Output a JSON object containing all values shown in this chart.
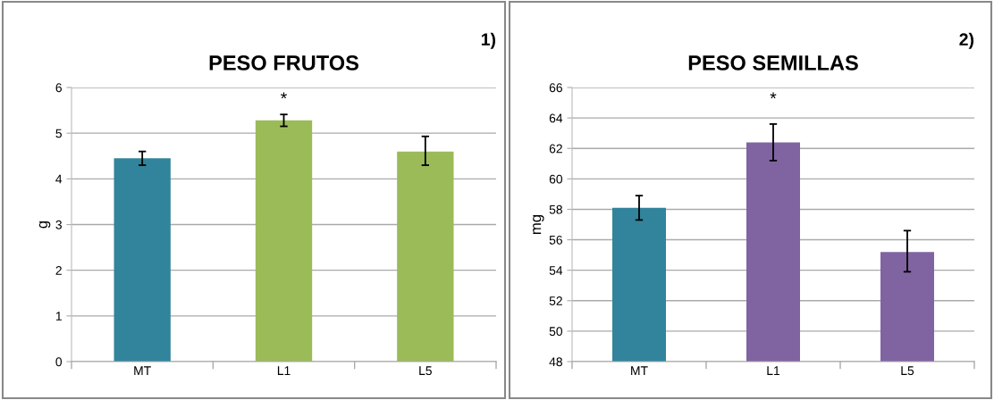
{
  "chart_data": [
    {
      "type": "bar",
      "title": "PESO FRUTOS",
      "ylabel": "g",
      "categories": [
        "MT",
        "L1",
        "L5"
      ],
      "values": [
        4.45,
        5.28,
        4.6
      ],
      "errors": [
        0.15,
        0.13,
        [
          4.3,
          4.93
        ]
      ],
      "colors": [
        "#31849b",
        "#9bbb59",
        "#9bbb59"
      ],
      "ylim": [
        0,
        6
      ],
      "yticks": [
        0,
        1,
        2,
        3,
        4,
        5,
        6
      ],
      "grid": "y",
      "annotations": [
        "1)",
        "*"
      ]
    },
    {
      "type": "bar",
      "title": "PESO SEMILLAS",
      "ylabel": "mg",
      "categories": [
        "MT",
        "L1",
        "L5"
      ],
      "values": [
        58.1,
        62.4,
        55.2
      ],
      "errors": [
        0.8,
        1.2,
        [
          53.9,
          56.6
        ]
      ],
      "colors": [
        "#31849b",
        "#8064a2",
        "#8064a2"
      ],
      "ylim": [
        48,
        66
      ],
      "yticks": [
        48,
        50,
        52,
        54,
        56,
        58,
        60,
        62,
        64,
        66
      ],
      "grid": "y",
      "annotations": [
        "2)",
        "*"
      ]
    }
  ]
}
